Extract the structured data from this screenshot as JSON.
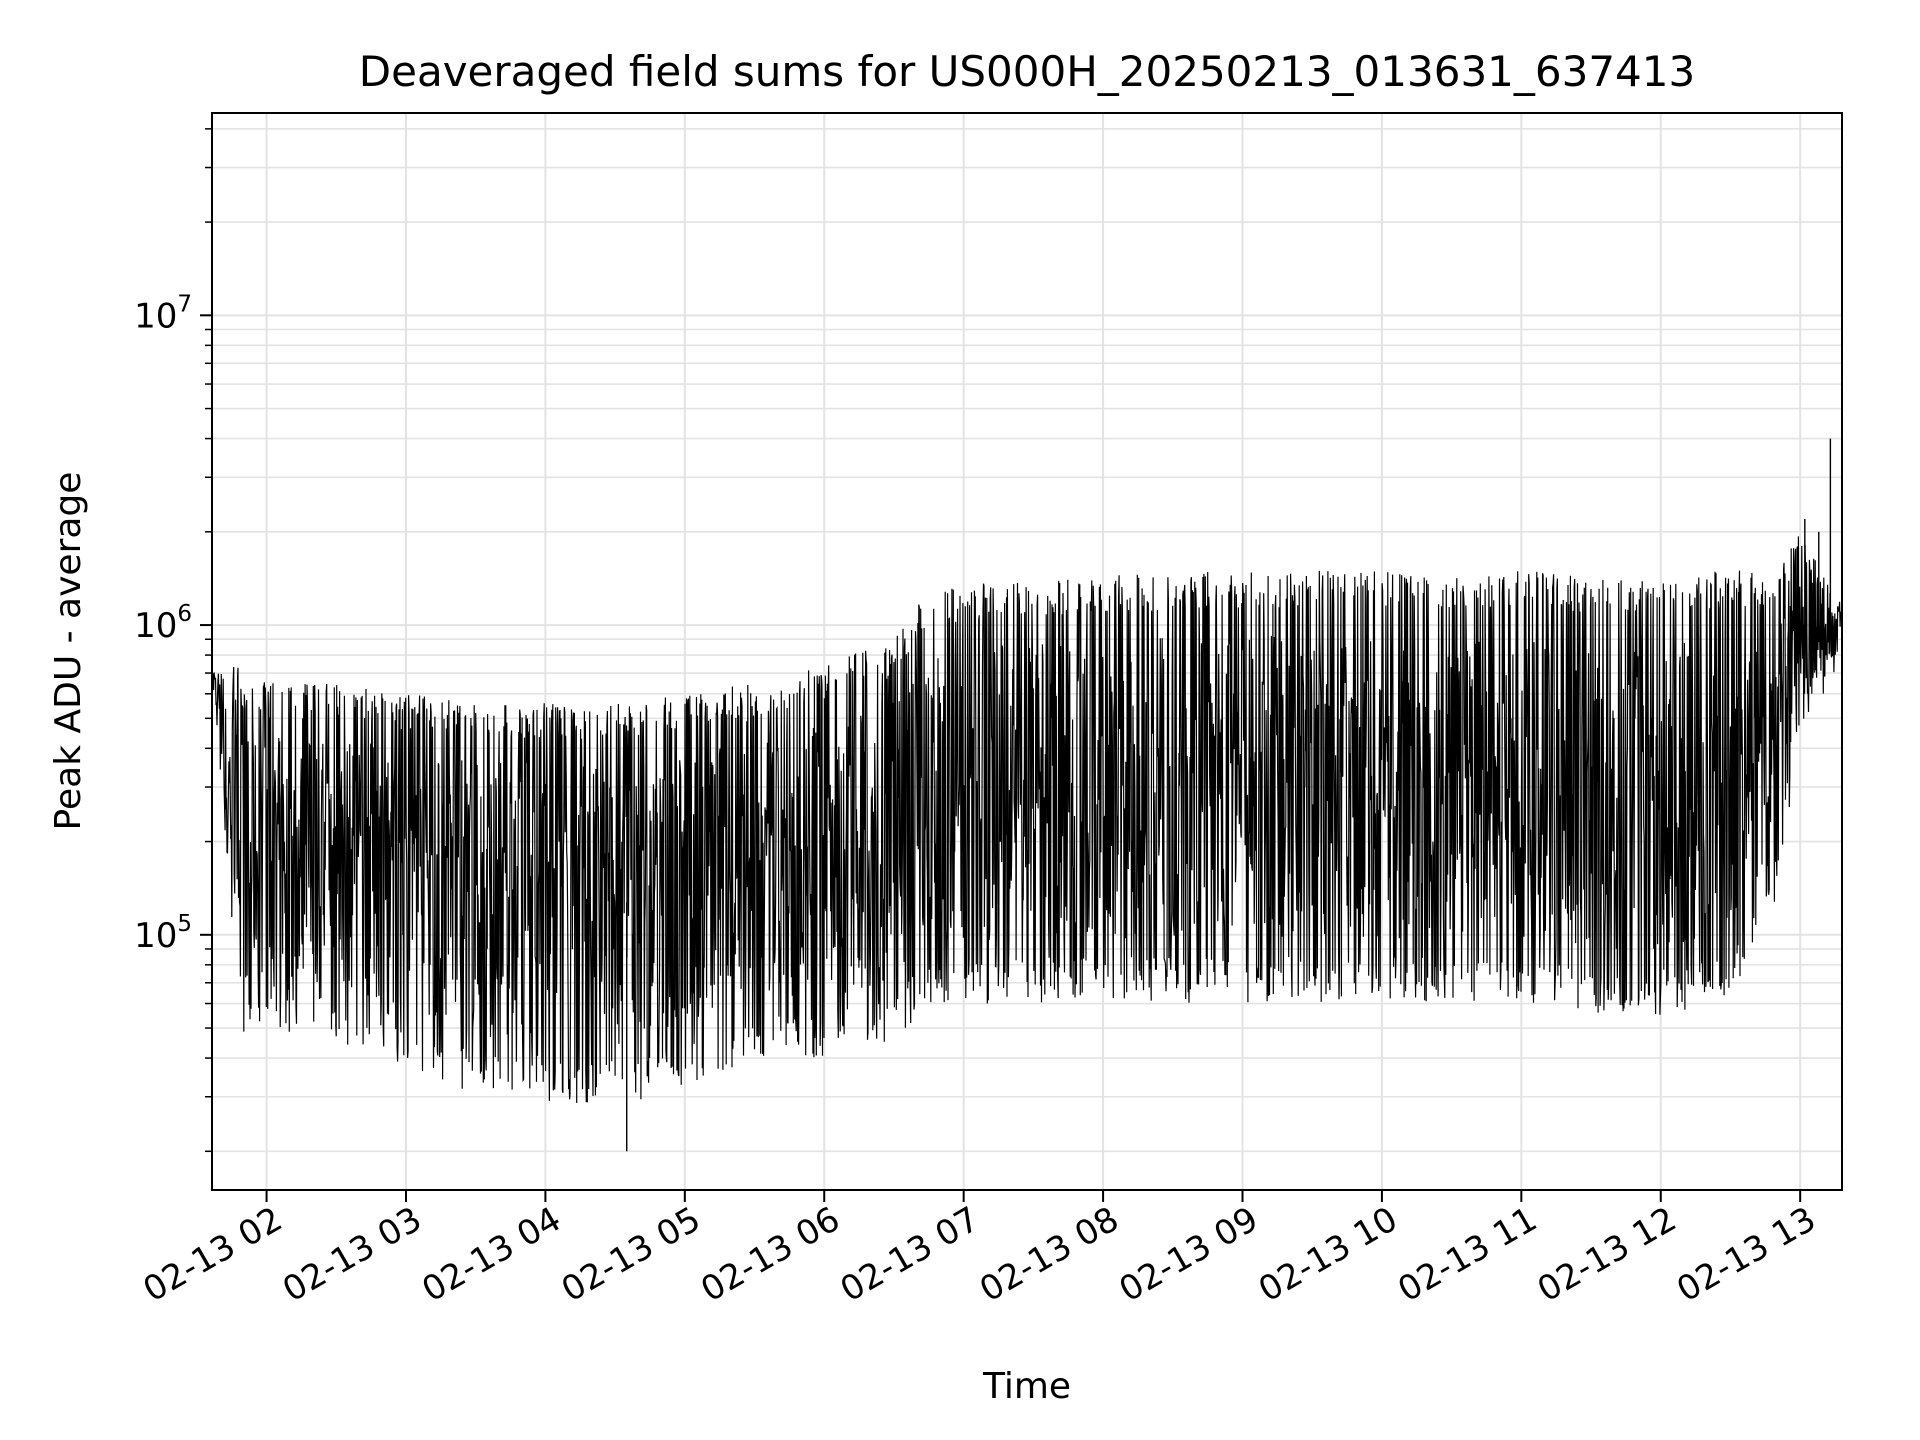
{
  "chart_data": {
    "type": "line",
    "title": "Deaveraged field sums for US000H_20250213_013631_637413",
    "xlabel": "Time",
    "ylabel": "Peak ADU - average",
    "yscale": "log",
    "ylim": [
      15000,
      45000000
    ],
    "xlim": [
      "2025-02-13 01:36:31",
      "2025-02-13 13:18:00"
    ],
    "grid": true,
    "line_color": "#000000",
    "x_ticks": [
      {
        "t": "2025-02-13 02:00",
        "label": "02-13 02"
      },
      {
        "t": "2025-02-13 03:00",
        "label": "02-13 03"
      },
      {
        "t": "2025-02-13 04:00",
        "label": "02-13 04"
      },
      {
        "t": "2025-02-13 05:00",
        "label": "02-13 05"
      },
      {
        "t": "2025-02-13 06:00",
        "label": "02-13 06"
      },
      {
        "t": "2025-02-13 07:00",
        "label": "02-13 07"
      },
      {
        "t": "2025-02-13 08:00",
        "label": "02-13 08"
      },
      {
        "t": "2025-02-13 09:00",
        "label": "02-13 09"
      },
      {
        "t": "2025-02-13 10:00",
        "label": "02-13 10"
      },
      {
        "t": "2025-02-13 11:00",
        "label": "02-13 11"
      },
      {
        "t": "2025-02-13 12:00",
        "label": "02-13 12"
      },
      {
        "t": "2025-02-13 13:00",
        "label": "02-13 13"
      }
    ],
    "y_ticks": [
      {
        "value": 100000,
        "base": "10",
        "exp": "5"
      },
      {
        "value": 1000000,
        "base": "10",
        "exp": "6"
      },
      {
        "value": 10000000,
        "base": "10",
        "exp": "7"
      }
    ],
    "series": [
      {
        "envelope": [
          {
            "t": "2025-02-13 01:37",
            "low": 600000,
            "high": 900000
          },
          {
            "t": "2025-02-13 01:42",
            "low": 200000,
            "high": 700000
          },
          {
            "t": "2025-02-13 01:46",
            "low": 80000,
            "high": 750000
          },
          {
            "t": "2025-02-13 01:50",
            "low": 45000,
            "high": 700000
          },
          {
            "t": "2025-02-13 02:00",
            "low": 50000,
            "high": 650000
          },
          {
            "t": "2025-02-13 02:30",
            "low": 45000,
            "high": 650000
          },
          {
            "t": "2025-02-13 03:00",
            "low": 38000,
            "high": 600000
          },
          {
            "t": "2025-02-13 03:30",
            "low": 30000,
            "high": 580000
          },
          {
            "t": "2025-02-13 04:00",
            "low": 29000,
            "high": 560000
          },
          {
            "t": "2025-02-13 04:30",
            "low": 28000,
            "high": 560000
          },
          {
            "t": "2025-02-13 05:00",
            "low": 32000,
            "high": 600000
          },
          {
            "t": "2025-02-13 05:30",
            "low": 38000,
            "high": 650000
          },
          {
            "t": "2025-02-13 06:00",
            "low": 40000,
            "high": 750000
          },
          {
            "t": "2025-02-13 06:30",
            "low": 45000,
            "high": 900000
          },
          {
            "t": "2025-02-13 06:45",
            "low": 60000,
            "high": 1300000
          },
          {
            "t": "2025-02-13 07:00",
            "low": 60000,
            "high": 1350000
          },
          {
            "t": "2025-02-13 08:00",
            "low": 60000,
            "high": 1450000
          },
          {
            "t": "2025-02-13 09:00",
            "low": 60000,
            "high": 1500000
          },
          {
            "t": "2025-02-13 10:00",
            "low": 60000,
            "high": 1500000
          },
          {
            "t": "2025-02-13 11:00",
            "low": 60000,
            "high": 1500000
          },
          {
            "t": "2025-02-13 11:30",
            "low": 55000,
            "high": 1450000
          },
          {
            "t": "2025-02-13 12:00",
            "low": 55000,
            "high": 1450000
          },
          {
            "t": "2025-02-13 12:30",
            "low": 60000,
            "high": 1500000
          },
          {
            "t": "2025-02-13 12:50",
            "low": 120000,
            "high": 1500000
          },
          {
            "t": "2025-02-13 13:00",
            "low": 400000,
            "high": 2000000
          },
          {
            "t": "2025-02-13 13:18",
            "low": 800000,
            "high": 1200000
          }
        ],
        "spikes": [
          {
            "t": "2025-02-13 04:35",
            "value": 20000
          },
          {
            "t": "2025-02-13 13:02",
            "value": 2200000
          },
          {
            "t": "2025-02-13 13:08",
            "value": 2000000
          },
          {
            "t": "2025-02-13 13:13",
            "value": 4000000
          }
        ]
      }
    ]
  }
}
